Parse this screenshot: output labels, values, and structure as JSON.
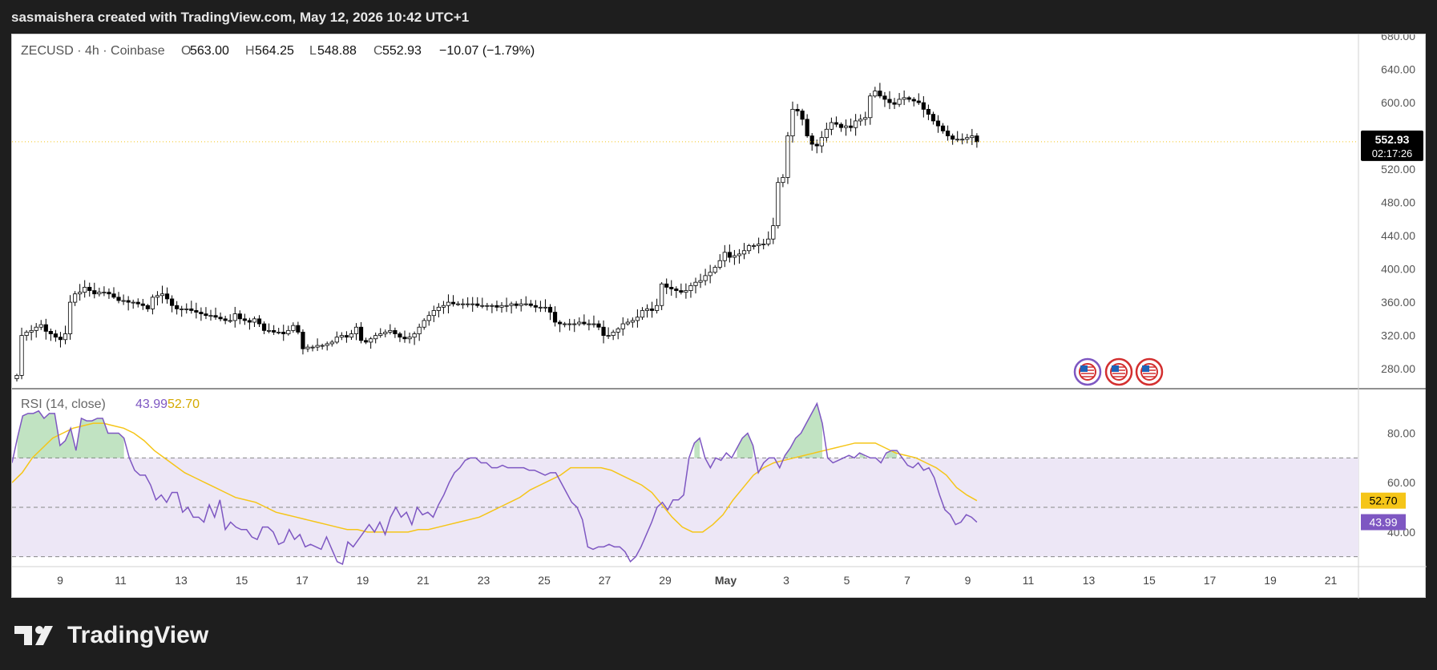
{
  "header": {
    "attribution": "sasmaishera created with TradingView.com, May 12, 2026 10:42 UTC+1"
  },
  "legend": {
    "symbol": "ZECUSD · 4h · Coinbase",
    "o_label": "O",
    "o_value": "563.00",
    "h_label": "H",
    "h_value": "564.25",
    "l_label": "L",
    "l_value": "548.88",
    "c_label": "C",
    "c_value": "552.93",
    "change": "−10.07 (−1.79%)"
  },
  "price_badge": {
    "price": "552.93",
    "countdown": "02:17:26"
  },
  "rsi_legend": {
    "title": "RSI (14, close)",
    "rsi_value": "43.99",
    "ma_value": "52.70"
  },
  "rsi_badges": {
    "ma": "52.70",
    "rsi": "43.99"
  },
  "brand": {
    "name": "TradingView"
  },
  "colors": {
    "candle_up": "#ffffff",
    "candle_down": "#000000",
    "wick": "#000000",
    "rsi_line": "#7e57c2",
    "rsi_ma_line": "#f5c518",
    "rsi_band": "#ede7f6",
    "overbought_fill": "#4caf50",
    "price_line": "#f5c518",
    "flag_ring": "#7e57c2"
  },
  "chart_data": [
    {
      "type": "candlestick",
      "symbol": "ZECUSD",
      "interval": "4h",
      "exchange": "Coinbase",
      "y_ticks": [
        "280.00",
        "320.00",
        "360.00",
        "400.00",
        "440.00",
        "480.00",
        "520.00",
        "560.00",
        "600.00",
        "640.00",
        "680.00"
      ],
      "ylim": [
        256,
        682
      ],
      "x_ticks": [
        "9",
        "11",
        "13",
        "15",
        "17",
        "19",
        "21",
        "23",
        "25",
        "27",
        "29",
        "May",
        "3",
        "5",
        "7",
        "9",
        "11",
        "13",
        "15",
        "17",
        "19",
        "21"
      ],
      "last_price": 552.93,
      "closes": [
        272,
        320,
        324,
        326,
        330,
        333,
        325,
        322,
        318,
        315,
        322,
        360,
        370,
        372,
        378,
        374,
        370,
        372,
        372,
        370,
        366,
        362,
        362,
        360,
        360,
        358,
        356,
        352,
        366,
        368,
        370,
        364,
        356,
        352,
        352,
        352,
        350,
        348,
        346,
        344,
        344,
        342,
        340,
        338,
        338,
        346,
        340,
        338,
        336,
        340,
        334,
        326,
        326,
        324,
        324,
        322,
        326,
        332,
        324,
        304,
        306,
        306,
        308,
        308,
        310,
        312,
        318,
        320,
        318,
        322,
        330,
        314,
        312,
        316,
        320,
        322,
        324,
        326,
        322,
        318,
        316,
        318,
        322,
        330,
        338,
        344,
        350,
        354,
        356,
        360,
        358,
        358,
        358,
        358,
        358,
        356,
        356,
        356,
        356,
        354,
        356,
        356,
        358,
        356,
        358,
        358,
        356,
        354,
        354,
        354,
        348,
        336,
        334,
        334,
        334,
        334,
        336,
        334,
        334,
        334,
        330,
        320,
        320,
        324,
        328,
        334,
        336,
        338,
        342,
        350,
        352,
        350,
        356,
        382,
        378,
        376,
        374,
        372,
        374,
        380,
        384,
        386,
        392,
        396,
        402,
        410,
        420,
        414,
        416,
        418,
        422,
        428,
        428,
        430,
        430,
        436,
        452,
        504,
        510,
        560,
        592,
        590,
        580,
        560,
        550,
        548,
        558,
        568,
        576,
        574,
        570,
        572,
        570,
        578,
        580,
        582,
        608,
        614,
        608,
        604,
        600,
        598,
        604,
        606,
        604,
        602,
        600,
        592,
        586,
        578,
        572,
        566,
        560,
        556,
        556,
        556,
        558,
        560,
        552.93
      ]
    },
    {
      "type": "line",
      "title": "RSI (14, close)",
      "y_ticks": [
        "40.00",
        "60.00",
        "80.00"
      ],
      "ylim": [
        26,
        98
      ],
      "bands": [
        30,
        50,
        70
      ],
      "series": [
        {
          "name": "RSI",
          "values": [
            68,
            78,
            87,
            88,
            88,
            89,
            86,
            88,
            88,
            75,
            77,
            82,
            73,
            86,
            85,
            85,
            86,
            86,
            80,
            80,
            80,
            78,
            70,
            65,
            63,
            63,
            59,
            53,
            55,
            52,
            56,
            56,
            48,
            50,
            46,
            46,
            44,
            51,
            46,
            53,
            41,
            44,
            42,
            41,
            41,
            38,
            37,
            42,
            42,
            40,
            35,
            36,
            41,
            37,
            39,
            34,
            35,
            34,
            33,
            38,
            33,
            28,
            27,
            36,
            34,
            37,
            40,
            43,
            40,
            44,
            39,
            46,
            50,
            46,
            48,
            43,
            50,
            47,
            48,
            46,
            51,
            55,
            60,
            64,
            66,
            69,
            70,
            70,
            68,
            68,
            66,
            66,
            67,
            66,
            66,
            66,
            66,
            65,
            65,
            64,
            63,
            64,
            64,
            60,
            56,
            52,
            50,
            45,
            34,
            33,
            34,
            34,
            35,
            34,
            34,
            32,
            28,
            30,
            34,
            39,
            44,
            50,
            52,
            49,
            53,
            53,
            55,
            70,
            76,
            78,
            70,
            66,
            70,
            69,
            72,
            70,
            74,
            78,
            80,
            75,
            64,
            68,
            70,
            70,
            66,
            71,
            74,
            78,
            80,
            84,
            88,
            92,
            84,
            70,
            68,
            69,
            70,
            71,
            70,
            72,
            71,
            70,
            70,
            68,
            72,
            73,
            73,
            70,
            67,
            66,
            68,
            65,
            66,
            62,
            55,
            49,
            47,
            43,
            44,
            47,
            46,
            43.99
          ]
        },
        {
          "name": "MA",
          "values": [
            60,
            64,
            70,
            74,
            78,
            80,
            82,
            83,
            84,
            84,
            83,
            82,
            80,
            77,
            73,
            70,
            67,
            64,
            62,
            60,
            58,
            56,
            54,
            53,
            52,
            50,
            48,
            47,
            46,
            45,
            44,
            43,
            42,
            41,
            41,
            40,
            40,
            40,
            40,
            40,
            41,
            41,
            42,
            43,
            44,
            45,
            46,
            48,
            50,
            52,
            54,
            57,
            59,
            61,
            63,
            66,
            66,
            66,
            66,
            65,
            63,
            61,
            59,
            56,
            51,
            46,
            42,
            40,
            40,
            43,
            47,
            53,
            58,
            63,
            66,
            68,
            69,
            70,
            71,
            72,
            73,
            74,
            75,
            76,
            76,
            76,
            74,
            72,
            71,
            70,
            68,
            66,
            63,
            58,
            55,
            52.7
          ]
        }
      ]
    }
  ]
}
